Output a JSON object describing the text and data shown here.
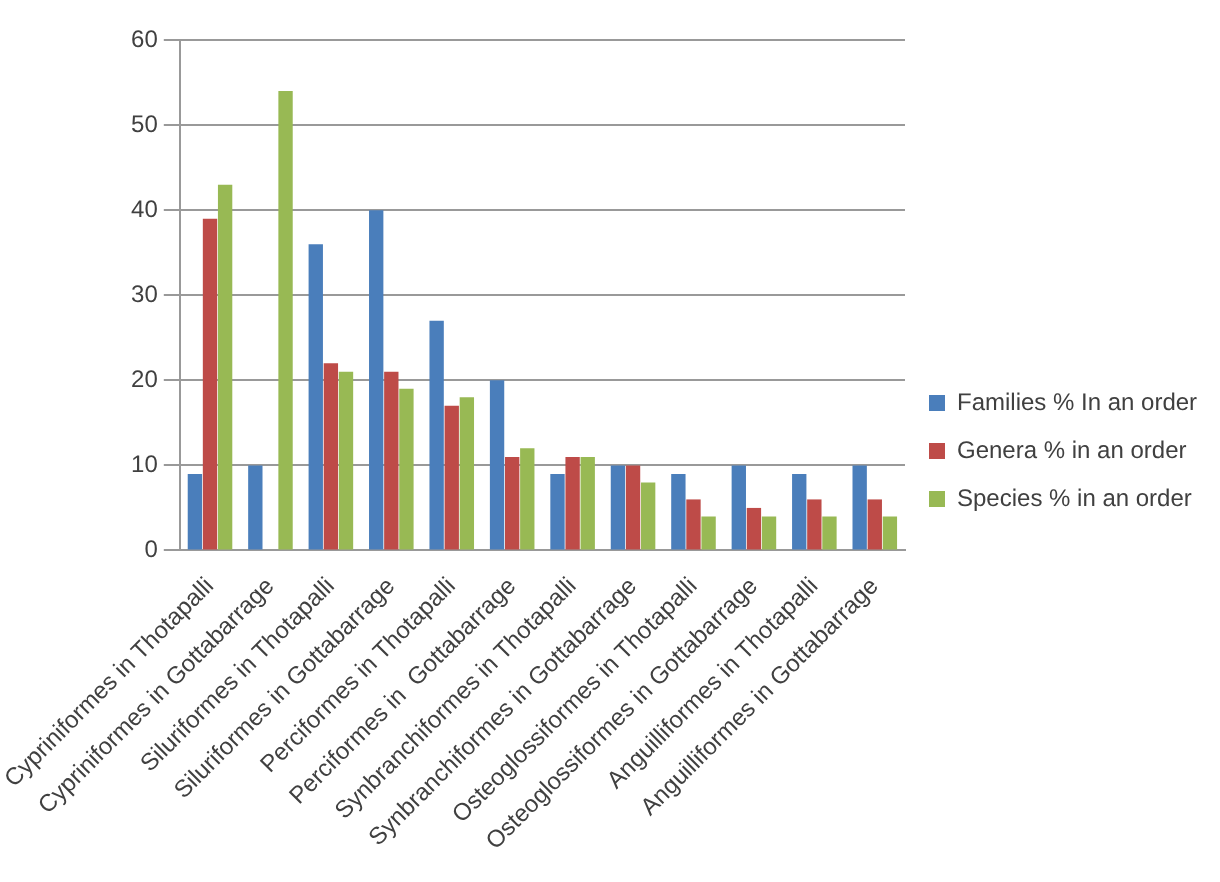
{
  "chart_data": {
    "type": "bar",
    "categories": [
      "Cypriniformes in Thotapalli",
      "Cypriniformes in Gottabarrage",
      "Siluriformes in Thotapalli",
      "Siluriformes in Gottabarrage",
      "Perciformes in Thotapalli",
      "Perciformes in  Gottabarrage",
      "Synbranchiformes in Thotapalli",
      "Synbranchiformes in Gottabarrage",
      "Osteoglossiformes in Thotapalli",
      "Osteoglossiformes in Gottabarrage",
      "Anguilliformes in Thotapalli",
      "Anguilliformes in Gottabarrage"
    ],
    "series": [
      {
        "name": "Families % In an order",
        "color": "#4a7ebb",
        "values": [
          9,
          10,
          36,
          40,
          27,
          20,
          9,
          10,
          9,
          10,
          9,
          10
        ]
      },
      {
        "name": "Genera % in an order",
        "color": "#be4b48",
        "values": [
          39,
          0,
          22,
          21,
          17,
          11,
          11,
          10,
          6,
          5,
          6,
          6
        ]
      },
      {
        "name": "Species % in an order",
        "color": "#98b954",
        "values": [
          43,
          54,
          21,
          19,
          18,
          12,
          11,
          8,
          4,
          4,
          4,
          4
        ]
      }
    ],
    "ylim": [
      0,
      60
    ],
    "yticks": [
      0,
      10,
      20,
      30,
      40,
      50,
      60
    ],
    "grid": "y",
    "legend": "right"
  }
}
